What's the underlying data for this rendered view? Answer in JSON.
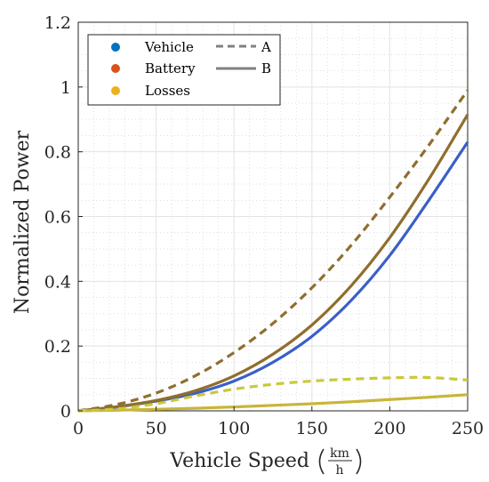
{
  "chart_data": {
    "type": "line",
    "xlabel": "Vehicle Speed",
    "xlabel_unit_num": "km",
    "xlabel_unit_den": "h",
    "ylabel": "Normalized Power",
    "xlim": [
      0,
      250
    ],
    "ylim": [
      0,
      1.2
    ],
    "xticks": [
      0,
      50,
      100,
      150,
      200,
      250
    ],
    "yticks": [
      0,
      0.2,
      0.4,
      0.6,
      0.8,
      1,
      1.2
    ],
    "ytick_labels": [
      "0",
      "0.2",
      "0.4",
      "0.6",
      "0.8",
      "1",
      "1.2"
    ],
    "grid": true,
    "minor_grid": true,
    "legend_position": "top-left",
    "legend_colors": [
      {
        "name": "Vehicle",
        "color": "#0072BD"
      },
      {
        "name": "Battery",
        "color": "#D95319"
      },
      {
        "name": "Losses",
        "color": "#EDB120"
      }
    ],
    "legend_styles": [
      {
        "name": "A",
        "dash": "dashed"
      },
      {
        "name": "B",
        "dash": "solid"
      }
    ],
    "x": [
      0,
      25,
      50,
      75,
      100,
      125,
      150,
      175,
      200,
      225,
      250
    ],
    "series": [
      {
        "group": "Vehicle",
        "style": "B",
        "color": "#3A5FC8",
        "dash": "solid",
        "values": [
          0,
          0.012,
          0.03,
          0.054,
          0.092,
          0.15,
          0.23,
          0.34,
          0.48,
          0.65,
          0.83
        ]
      },
      {
        "group": "Battery",
        "style": "B",
        "color": "#8F6E2E",
        "dash": "solid",
        "values": [
          0,
          0.013,
          0.032,
          0.062,
          0.108,
          0.175,
          0.265,
          0.385,
          0.535,
          0.715,
          0.915
        ]
      },
      {
        "group": "Battery",
        "style": "A",
        "color": "#8F6E2E",
        "dash": "dashed",
        "values": [
          0,
          0.02,
          0.055,
          0.108,
          0.18,
          0.27,
          0.38,
          0.51,
          0.66,
          0.82,
          0.99
        ]
      },
      {
        "group": "Losses",
        "style": "B",
        "color": "#C9B53A",
        "dash": "solid",
        "values": [
          0,
          0.002,
          0.005,
          0.008,
          0.012,
          0.017,
          0.022,
          0.028,
          0.035,
          0.042,
          0.05
        ]
      },
      {
        "group": "Losses",
        "style": "A",
        "color": "#C9C93A",
        "dash": "dashed",
        "values": [
          0,
          0.006,
          0.022,
          0.046,
          0.067,
          0.082,
          0.092,
          0.098,
          0.102,
          0.103,
          0.095
        ]
      }
    ]
  }
}
